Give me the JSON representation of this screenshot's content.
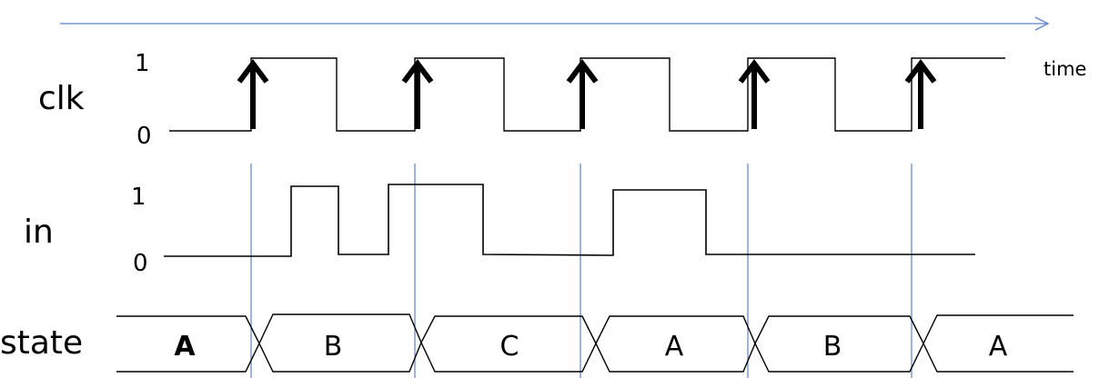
{
  "diagram": {
    "time_label": "time",
    "accent_color": "#5b82c7",
    "signals": {
      "clk": {
        "name": "clk",
        "high_label": "1",
        "low_label": "0",
        "description_of_marks": "rising-edge arrows on every clock rising edge"
      },
      "in": {
        "name": "in",
        "high_label": "1",
        "low_label": "0"
      },
      "state": {
        "name": "state",
        "values": [
          {
            "label": "A",
            "color": "#e02020"
          },
          {
            "label": "B",
            "color": "#000000"
          },
          {
            "label": "C",
            "color": "#000000"
          },
          {
            "label": "A",
            "color": "#000000"
          },
          {
            "label": "B",
            "color": "#000000"
          },
          {
            "label": "A",
            "color": "#000000"
          }
        ]
      }
    }
  }
}
